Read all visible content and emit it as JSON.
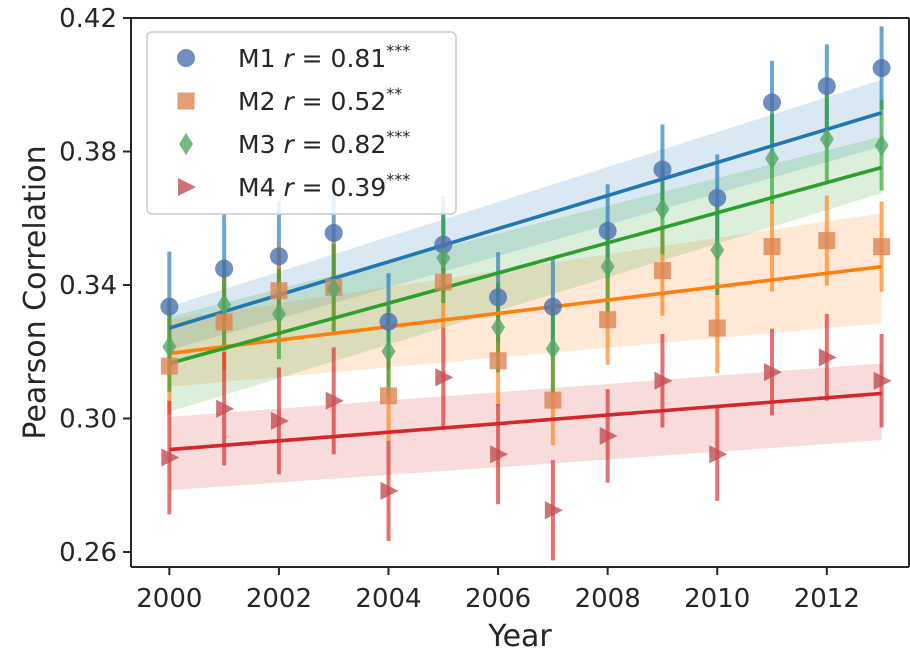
{
  "chart_data": {
    "type": "scatter",
    "title": "",
    "xlabel": "Year",
    "ylabel": "Pearson Correlation",
    "xlim": [
      1999.3,
      2013.5
    ],
    "ylim": [
      0.2555,
      0.42
    ],
    "x_ticks": [
      2000,
      2002,
      2004,
      2006,
      2008,
      2010,
      2012
    ],
    "y_ticks": [
      0.26,
      0.3,
      0.34,
      0.38,
      0.42
    ],
    "y_tick_labels": [
      "0.26",
      "0.30",
      "0.34",
      "0.38",
      "0.42"
    ],
    "grid": false,
    "legend_position": "top-left",
    "x": [
      2000,
      2001,
      2002,
      2003,
      2004,
      2005,
      2006,
      2007,
      2008,
      2009,
      2010,
      2011,
      2012,
      2013
    ],
    "series": [
      {
        "name": "M1",
        "legend_r": "0.81",
        "legend_sig": "***",
        "marker": "circle",
        "marker_color": "#4c72b0",
        "line_color": "#1f77b4",
        "values": [
          0.3335,
          0.3449,
          0.3486,
          0.3556,
          0.329,
          0.3521,
          0.3363,
          0.3335,
          0.3562,
          0.3746,
          0.3661,
          0.3947,
          0.3996,
          0.405
        ],
        "err": [
          0.0165,
          0.0165,
          0.0165,
          0.0165,
          0.0145,
          0.0145,
          0.0135,
          0.0145,
          0.014,
          0.0135,
          0.013,
          0.0125,
          0.0125,
          0.0125
        ],
        "fit": [
          0.3271,
          0.3916
        ],
        "band_low": [
          0.3205,
          0.3815
        ],
        "band_high": [
          0.3335,
          0.4015
        ]
      },
      {
        "name": "M2",
        "legend_r": "0.52",
        "legend_sig": "**",
        "marker": "square",
        "marker_color": "#dd8452",
        "line_color": "#ff7f0e",
        "values": [
          0.3157,
          0.3289,
          0.3383,
          0.3393,
          0.3068,
          0.3409,
          0.3173,
          0.3055,
          0.3296,
          0.3443,
          0.3271,
          0.3515,
          0.3533,
          0.3515
        ],
        "err": [
          0.0145,
          0.0145,
          0.0135,
          0.0135,
          0.0135,
          0.0135,
          0.0135,
          0.0135,
          0.0135,
          0.0135,
          0.0135,
          0.0135,
          0.0135,
          0.0135
        ],
        "fit": [
          0.3195,
          0.3455
        ],
        "band_low": [
          0.3095,
          0.3285
        ],
        "band_high": [
          0.3295,
          0.3615
        ]
      },
      {
        "name": "M3",
        "legend_r": "0.82",
        "legend_sig": "***",
        "marker": "diamond",
        "marker_color": "#55a868",
        "line_color": "#2ca02c",
        "values": [
          0.3215,
          0.3341,
          0.3313,
          0.3388,
          0.3201,
          0.3481,
          0.3273,
          0.3209,
          0.3455,
          0.3627,
          0.3505,
          0.3779,
          0.3837,
          0.3818
        ],
        "err": [
          0.0135,
          0.0135,
          0.0135,
          0.0135,
          0.0135,
          0.0135,
          0.0135,
          0.0135,
          0.0135,
          0.0135,
          0.0135,
          0.0135,
          0.0135,
          0.0135
        ],
        "fit": [
          0.3165,
          0.3752
        ],
        "band_low": [
          0.302,
          0.3675
        ],
        "band_high": [
          0.3305,
          0.3845
        ]
      },
      {
        "name": "M4",
        "legend_r": "0.39",
        "legend_sig": "***",
        "marker": "triangle-right",
        "marker_color": "#c44e52",
        "line_color": "#d62728",
        "values": [
          0.2883,
          0.3029,
          0.2993,
          0.3053,
          0.2783,
          0.3123,
          0.2893,
          0.2725,
          0.2948,
          0.3113,
          0.2893,
          0.3139,
          0.3183,
          0.3113
        ],
        "err": [
          0.017,
          0.017,
          0.016,
          0.016,
          0.015,
          0.015,
          0.015,
          0.015,
          0.014,
          0.014,
          0.014,
          0.013,
          0.013,
          0.014
        ],
        "fit": [
          0.2907,
          0.3075
        ],
        "band_low": [
          0.2785,
          0.2935
        ],
        "band_high": [
          0.3005,
          0.3165
        ]
      }
    ]
  }
}
